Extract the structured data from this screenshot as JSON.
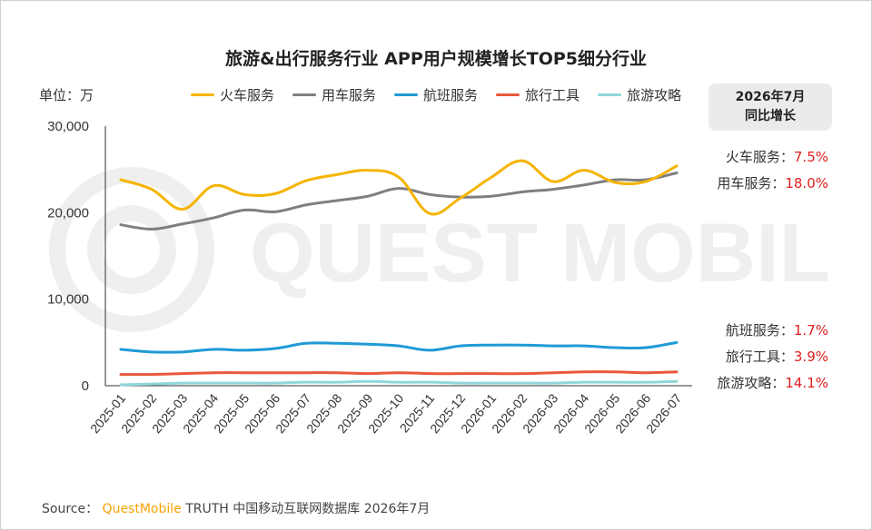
{
  "title": "旅游&出行服务行业 APP用户规模增长TOP5细分行业",
  "unit_label": "单位：万",
  "watermark": "QUEST MOBILE",
  "growth_panel": {
    "header_line1": "2026年7月",
    "header_line2": "同比增长",
    "rows": [
      {
        "label": "火车服务：",
        "value": "7.5%"
      },
      {
        "label": "用车服务：",
        "value": "18.0%"
      },
      {
        "label": "航班服务：",
        "value": "1.7%"
      },
      {
        "label": "旅行工具：",
        "value": "3.9%"
      },
      {
        "label": "旅游攻略：",
        "value": "14.1%"
      }
    ]
  },
  "footer": {
    "prefix": "Source：",
    "brand": "QuestMobile",
    "suffix": "TRUTH 中国移动互联网数据库 2026年7月"
  },
  "colors": {
    "train": "#f5b400",
    "car": "#7f7f7f",
    "flight": "#1f9ad6",
    "tools": "#e8583a",
    "guide": "#8fd7d9",
    "axis": "#333333",
    "watermark": "#efefef",
    "growth_value": "#e0201f"
  },
  "chart_data": {
    "type": "line",
    "title": "旅游&出行服务行业 APP用户规模增长TOP5细分行业",
    "ylabel": "单位：万",
    "ylim": [
      0,
      30000
    ],
    "yticks": [
      0,
      10000,
      20000,
      30000
    ],
    "ytick_labels": [
      "0",
      "10,000",
      "20,000",
      "30,000"
    ],
    "grid": false,
    "legend_position": "top",
    "categories": [
      "2025-01",
      "2025-02",
      "2025-03",
      "2025-04",
      "2025-05",
      "2025-06",
      "2025-07",
      "2025-08",
      "2025-09",
      "2025-10",
      "2025-11",
      "2025-12",
      "2026-01",
      "2026-02",
      "2026-03",
      "2026-04",
      "2026-05",
      "2026-06",
      "2026-07"
    ],
    "series": [
      {
        "name": "火车服务",
        "color_key": "train",
        "values": [
          23800,
          22700,
          20400,
          23100,
          22100,
          22200,
          23700,
          24400,
          24900,
          24100,
          19900,
          21700,
          24100,
          26000,
          23600,
          24900,
          23500,
          23600,
          25400
        ]
      },
      {
        "name": "用车服务",
        "color_key": "car",
        "values": [
          18600,
          18100,
          18700,
          19400,
          20300,
          20100,
          20900,
          21400,
          21900,
          22800,
          22100,
          21800,
          21900,
          22400,
          22700,
          23200,
          23800,
          23800,
          24600
        ]
      },
      {
        "name": "航班服务",
        "color_key": "flight",
        "values": [
          4200,
          3900,
          3900,
          4200,
          4100,
          4300,
          4900,
          4900,
          4800,
          4600,
          4100,
          4600,
          4700,
          4700,
          4600,
          4600,
          4400,
          4400,
          5000
        ]
      },
      {
        "name": "旅行工具",
        "color_key": "tools",
        "values": [
          1300,
          1300,
          1400,
          1500,
          1500,
          1500,
          1500,
          1500,
          1400,
          1500,
          1400,
          1400,
          1400,
          1400,
          1500,
          1600,
          1600,
          1500,
          1600
        ]
      },
      {
        "name": "旅游攻略",
        "color_key": "guide",
        "values": [
          100,
          200,
          300,
          300,
          300,
          300,
          400,
          400,
          500,
          400,
          400,
          300,
          300,
          300,
          300,
          400,
          400,
          400,
          500
        ]
      }
    ]
  }
}
